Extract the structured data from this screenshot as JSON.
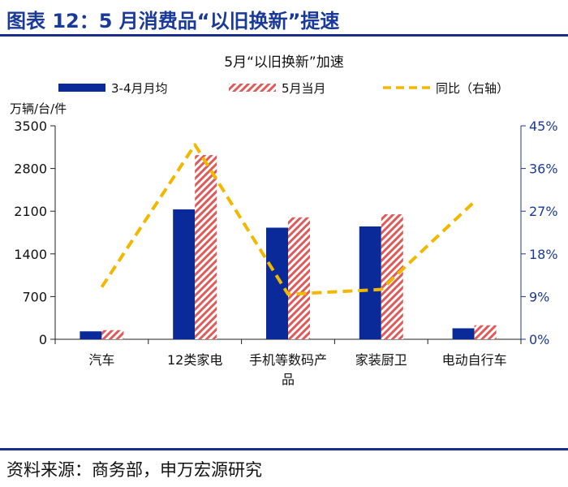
{
  "figure": {
    "title": "图表 12：5 月消费品“以旧换新”提速",
    "source": "资料来源：商务部，申万宏源研究"
  },
  "colors": {
    "bar_avg": "#0a2a9a",
    "bar_may": "#e05a5a",
    "line": "#f2b800",
    "axis_right": "#1a3a9a"
  },
  "chart_data": {
    "type": "bar",
    "title": "5月“以旧换新”加速",
    "ylabel": "万辆/台/件",
    "ylim": [
      0,
      3500
    ],
    "yticks": [
      0,
      700,
      1400,
      2100,
      2800,
      3500
    ],
    "y2lim": [
      0,
      45
    ],
    "y2ticks": [
      "0%",
      "9%",
      "18%",
      "27%",
      "36%",
      "45%"
    ],
    "categories": [
      "汽车",
      "12类家电",
      "手机等数码产品",
      "家装厨卫",
      "电动自行车"
    ],
    "series": [
      {
        "name": "3-4月月均",
        "kind": "bar",
        "axis": "left",
        "values": [
          130,
          2130,
          1830,
          1850,
          180
        ]
      },
      {
        "name": "5月当月",
        "kind": "bar",
        "axis": "left",
        "values": [
          150,
          3020,
          2000,
          2050,
          230
        ]
      },
      {
        "name": "同比（右轴）",
        "kind": "line",
        "axis": "right",
        "values": [
          11,
          41,
          9.5,
          10.5,
          29
        ]
      }
    ],
    "legend_position": "top"
  }
}
